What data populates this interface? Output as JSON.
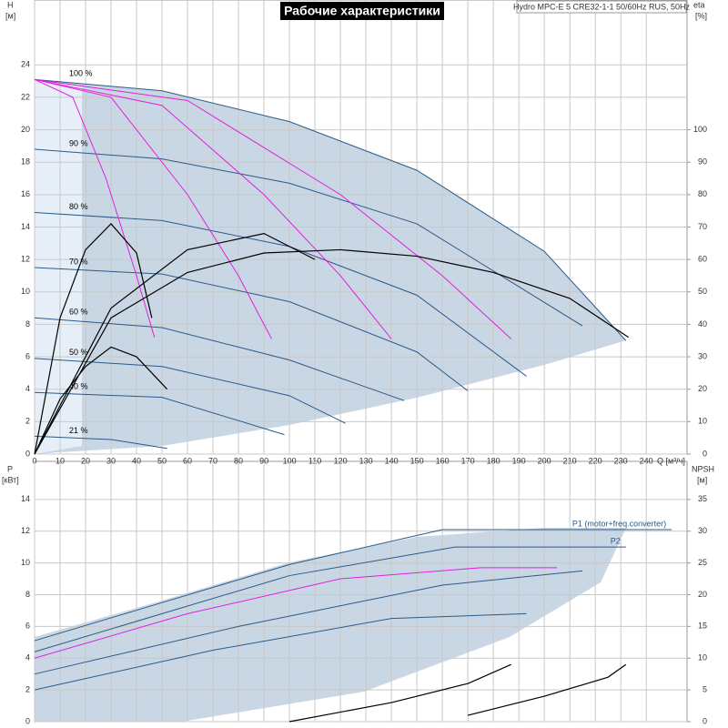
{
  "chart_data": [
    {
      "type": "line",
      "title": "Рабочие характеристики",
      "annotation": "Hydro MPC-E 5 CRE32-1-1 50/60Hz RUS, 50Hz",
      "ylabel": "H",
      "yunit": "[м]",
      "y2label": "eta",
      "y2unit": "[%]",
      "xlabel": "Q [м³/ч]",
      "xlim": [
        0,
        256
      ],
      "xticks": [
        0,
        10,
        20,
        30,
        40,
        50,
        60,
        70,
        80,
        90,
        100,
        110,
        120,
        130,
        140,
        150,
        160,
        170,
        180,
        190,
        200,
        210,
        220,
        230,
        240
      ],
      "show_xtick_labels": true,
      "ylim": [
        0,
        28
      ],
      "yticks": [
        0,
        2,
        4,
        6,
        8,
        10,
        12,
        14,
        16,
        18,
        20,
        22,
        24
      ],
      "y2lim": [
        0,
        140
      ],
      "y2ticks": [
        0,
        10,
        20,
        30,
        40,
        50,
        60,
        70,
        80,
        90,
        100
      ],
      "grid": true,
      "label_at": "start",
      "series": [
        {
          "name": "100 %",
          "color": "#2a5a8a",
          "x": [
            0,
            50,
            100,
            150,
            200,
            232
          ],
          "values": [
            23.1,
            22.4,
            20.5,
            17.5,
            12.5,
            7
          ]
        },
        {
          "name": "90 %",
          "color": "#2a5a8a",
          "x": [
            0,
            50,
            100,
            150,
            215
          ],
          "values": [
            18.8,
            18.2,
            16.7,
            14.2,
            7.9
          ]
        },
        {
          "name": "80 %",
          "color": "#2a5a8a",
          "x": [
            0,
            50,
            100,
            150,
            193
          ],
          "values": [
            14.9,
            14.4,
            12.8,
            9.8,
            4.8
          ]
        },
        {
          "name": "70 %",
          "color": "#2a5a8a",
          "x": [
            0,
            50,
            100,
            150,
            170
          ],
          "values": [
            11.5,
            11.1,
            9.4,
            6.3,
            3.9
          ]
        },
        {
          "name": "60 %",
          "color": "#2a5a8a",
          "x": [
            0,
            50,
            100,
            145
          ],
          "values": [
            8.4,
            7.8,
            5.8,
            3.3
          ]
        },
        {
          "name": "50 %",
          "color": "#2a5a8a",
          "x": [
            0,
            50,
            100,
            122
          ],
          "values": [
            5.9,
            5.4,
            3.6,
            1.9
          ]
        },
        {
          "name": "40 %",
          "color": "#2a5a8a",
          "x": [
            0,
            50,
            98
          ],
          "values": [
            3.8,
            3.5,
            1.2
          ]
        },
        {
          "name": "21 %",
          "color": "#2a5a8a",
          "x": [
            0,
            30,
            52
          ],
          "values": [
            1.1,
            0.9,
            0.35
          ]
        },
        {
          "color": "#e020e0",
          "x": [
            0,
            15,
            28,
            40,
            47
          ],
          "values": [
            23.1,
            22,
            17,
            11,
            7.2
          ]
        },
        {
          "color": "#e020e0",
          "x": [
            0,
            30,
            60,
            80,
            93
          ],
          "values": [
            23.1,
            22,
            16,
            11,
            7.1
          ]
        },
        {
          "color": "#e020e0",
          "x": [
            0,
            50,
            90,
            120,
            140
          ],
          "values": [
            23.1,
            21.5,
            16,
            11,
            7.1
          ]
        },
        {
          "color": "#e020e0",
          "x": [
            0,
            60,
            120,
            160,
            187
          ],
          "values": [
            23.1,
            21.8,
            16,
            11,
            7.1
          ]
        },
        {
          "color": "#000000",
          "axis": "y2",
          "x": [
            0,
            10,
            20,
            30,
            40,
            46
          ],
          "values": [
            0,
            42,
            63,
            71,
            62,
            42
          ]
        },
        {
          "color": "#000000",
          "axis": "y2",
          "x": [
            0,
            10,
            20,
            30,
            40,
            52
          ],
          "values": [
            0,
            17,
            27,
            33,
            30,
            20
          ]
        },
        {
          "color": "#000000",
          "axis": "y2",
          "x": [
            0,
            30,
            60,
            90,
            120,
            150,
            180,
            210,
            233
          ],
          "values": [
            0,
            42,
            56,
            62,
            63,
            61,
            56,
            48,
            36
          ]
        },
        {
          "color": "#000000",
          "axis": "y2",
          "x": [
            0,
            30,
            60,
            90,
            110
          ],
          "values": [
            0,
            45,
            63,
            68,
            60
          ]
        }
      ]
    },
    {
      "type": "line",
      "ylabel": "P",
      "yunit": "[кВт]",
      "y2label": "NPSH",
      "y2unit": "[м]",
      "xlim": [
        0,
        256
      ],
      "xticks": [
        0,
        10,
        20,
        30,
        40,
        50,
        60,
        70,
        80,
        90,
        100,
        110,
        120,
        130,
        140,
        150,
        160,
        170,
        180,
        190,
        200,
        210,
        220,
        230,
        240
      ],
      "show_xtick_labels": false,
      "ylim": [
        0,
        16.4
      ],
      "yticks": [
        0,
        2,
        4,
        6,
        8,
        10,
        12,
        14
      ],
      "y2lim": [
        0,
        41
      ],
      "y2ticks": [
        0,
        5,
        10,
        15,
        20,
        25,
        30,
        35
      ],
      "grid": true,
      "label_at": "end",
      "series": [
        {
          "name": "P1 (motor+freq.converter)",
          "color": "#2a5a8a",
          "x": [
            0,
            50,
            100,
            160,
            250
          ],
          "values": [
            5.1,
            7.5,
            9.9,
            12.1,
            12.1
          ]
        },
        {
          "name": "P2",
          "color": "#2a5a8a",
          "x": [
            0,
            50,
            100,
            165,
            232
          ],
          "values": [
            4.4,
            6.8,
            9.2,
            11,
            11
          ]
        },
        {
          "color": "#e020e0",
          "x": [
            0,
            60,
            120,
            175,
            205
          ],
          "values": [
            4,
            6.8,
            9,
            9.7,
            9.7
          ]
        },
        {
          "color": "#2a5a8a",
          "x": [
            0,
            80,
            160,
            215
          ],
          "values": [
            3,
            6,
            8.6,
            9.5
          ]
        },
        {
          "color": "#2a5a8a",
          "x": [
            0,
            70,
            140,
            193
          ],
          "values": [
            2,
            4.5,
            6.5,
            6.8
          ]
        },
        {
          "color": "#000000",
          "axis": "y2",
          "x": [
            100,
            140,
            170,
            187
          ],
          "values": [
            0,
            3,
            6,
            9
          ]
        },
        {
          "color": "#000000",
          "axis": "y2",
          "x": [
            170,
            200,
            225,
            232
          ],
          "values": [
            1,
            4,
            7,
            9
          ]
        }
      ]
    }
  ]
}
